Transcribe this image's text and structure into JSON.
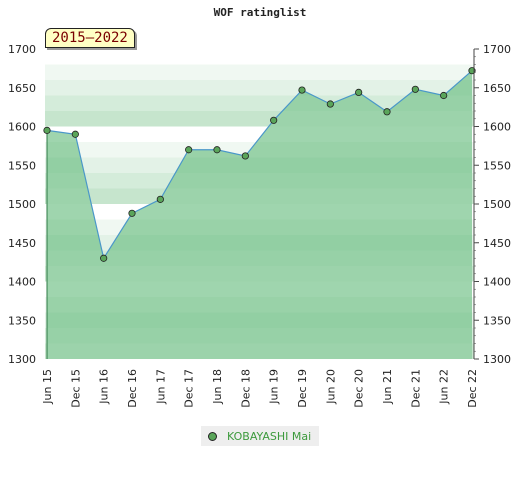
{
  "title": "WOF ratinglist",
  "badge": "2015–2022",
  "colors": {
    "series_fill": "#9dd6ab",
    "series_line": "#4a97c9",
    "marker": "#5aa55a",
    "legend_text": "#3c9a3c"
  },
  "chart_data": {
    "type": "area",
    "title": "WOF ratinglist",
    "x": [
      "Jun 15",
      "Dec 15",
      "Jun 16",
      "Dec 16",
      "Jun 17",
      "Dec 17",
      "Jun 18",
      "Dec 18",
      "Jun 19",
      "Dec 19",
      "Jun 20",
      "Dec 20",
      "Jun 21",
      "Dec 21",
      "Jun 22",
      "Dec 22"
    ],
    "y_ticks": [
      1300,
      1350,
      1400,
      1450,
      1500,
      1550,
      1600,
      1650,
      1700
    ],
    "ylim": [
      1300,
      1700
    ],
    "series": [
      {
        "name": "KOBAYASHI Mai",
        "values": [
          1595,
          1590,
          1430,
          1488,
          1506,
          1570,
          1570,
          1562,
          1608,
          1647,
          1629,
          1644,
          1619,
          1648,
          1640,
          1672
        ]
      }
    ],
    "legend_position": "bottom",
    "grid": false
  }
}
